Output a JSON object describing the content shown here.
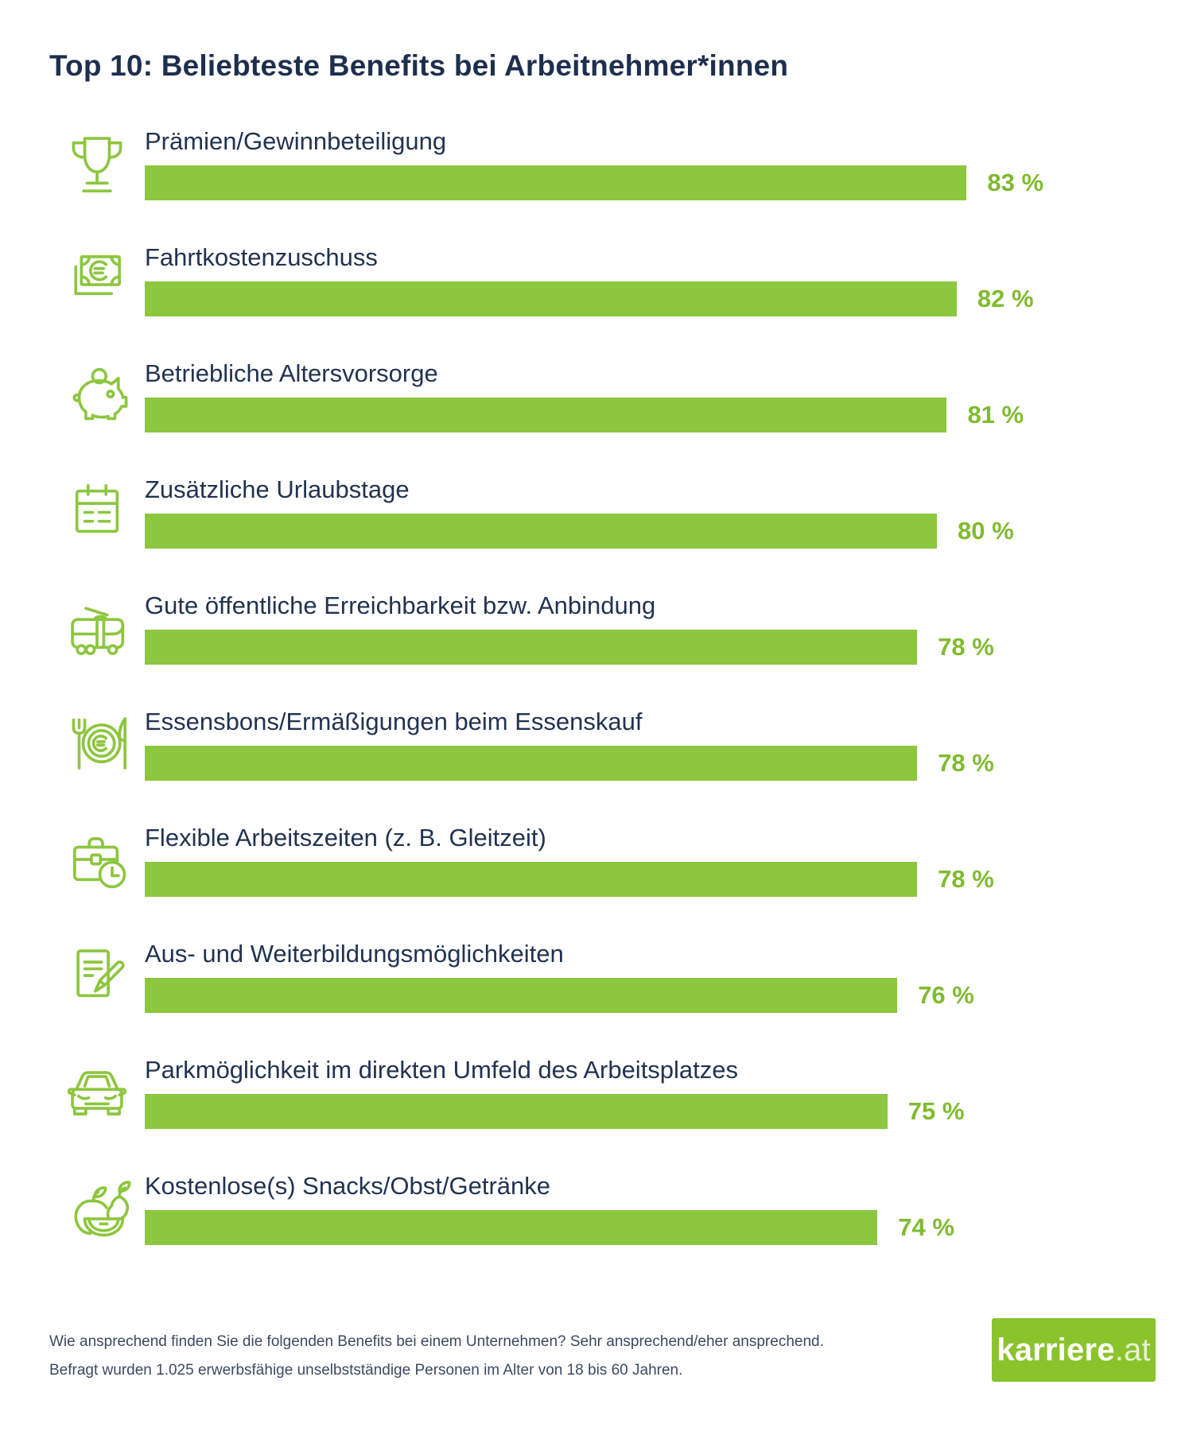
{
  "title": "Top 10: Beliebteste Benefits bei Arbeitnehmer*innen",
  "colors": {
    "bar_green": "#8dc63f",
    "icon_green": "#8dc63f",
    "value_green": "#80bb30",
    "heading_navy": "#1e2f4e",
    "label_navy": "#213350",
    "logo_green": "#8bc32d"
  },
  "chart_data": {
    "type": "bar",
    "orientation": "horizontal",
    "title": "Top 10: Beliebteste Benefits bei Arbeitnehmer*innen",
    "categories": [
      "Prämien/Gewinnbeteiligung",
      "Fahrtkostenzuschuss",
      "Betriebliche Altersvorsorge",
      "Zusätzliche Urlaubstage",
      "Gute öffentliche Erreichbarkeit bzw. Anbindung",
      "Essensbons/Ermäßigungen beim Essenskauf",
      "Flexible Arbeitszeiten (z. B. Gleitzeit)",
      "Aus- und Weiterbildungsmöglichkeiten",
      "Parkmöglichkeit im direkten Umfeld des Arbeitsplatzes",
      "Kostenlose(s) Snacks/Obst/Getränke"
    ],
    "values": [
      83,
      82,
      81,
      80,
      78,
      78,
      78,
      76,
      75,
      74
    ],
    "value_labels": [
      "83 %",
      "82 %",
      "81 %",
      "80 %",
      "78 %",
      "78 %",
      "78 %",
      "76 %",
      "75 %",
      "74 %"
    ],
    "unit": "%",
    "xlim": [
      0,
      100
    ],
    "grid": false,
    "legend": false,
    "icons": [
      "trophy-icon",
      "banknote-euro-icon",
      "piggy-bank-icon",
      "calendar-icon",
      "tram-icon",
      "meal-plate-euro-icon",
      "briefcase-clock-icon",
      "document-pencil-icon",
      "car-icon",
      "fruits-icon"
    ]
  },
  "footer": {
    "line1": "Wie ansprechend finden Sie die folgenden Benefits bei einem Unternehmen? Sehr ansprechend/eher ansprechend.",
    "line2": "Befragt wurden 1.025 erwerbsfähige unselbstständige Personen im Alter von 18 bis 60 Jahren.",
    "logo_bold": "karriere",
    "logo_suffix": ".at"
  }
}
